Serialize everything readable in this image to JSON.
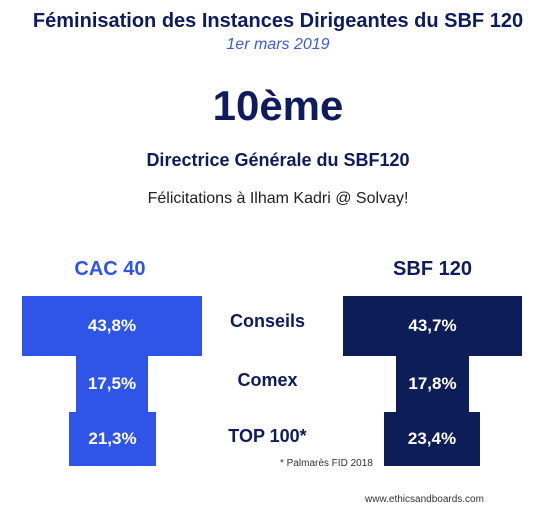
{
  "header": {
    "title": "Féminisation des Instances Dirigeantes du SBF 120",
    "date": "1er mars 2019",
    "rank": "10ème",
    "role": "Directrice Générale du SBF120",
    "congrats": "Félicitations à Ilham Kadri @ Solvay!"
  },
  "chart_data": {
    "type": "bar",
    "categories": [
      "Conseils",
      "Comex",
      "TOP 100*"
    ],
    "series": [
      {
        "name": "CAC 40",
        "values": [
          43.8,
          17.5,
          21.3
        ],
        "labels": [
          "43,8%",
          "17,5%",
          "21,3%"
        ],
        "color": "#2f55e8"
      },
      {
        "name": "SBF 120",
        "values": [
          43.7,
          17.8,
          23.4
        ],
        "labels": [
          "43,7%",
          "17,8%",
          "23,4%"
        ],
        "color": "#0c1d57"
      }
    ],
    "note": "* Palmarès FID 2018"
  },
  "footer": {
    "source": "www.ethicsandboards.com"
  }
}
